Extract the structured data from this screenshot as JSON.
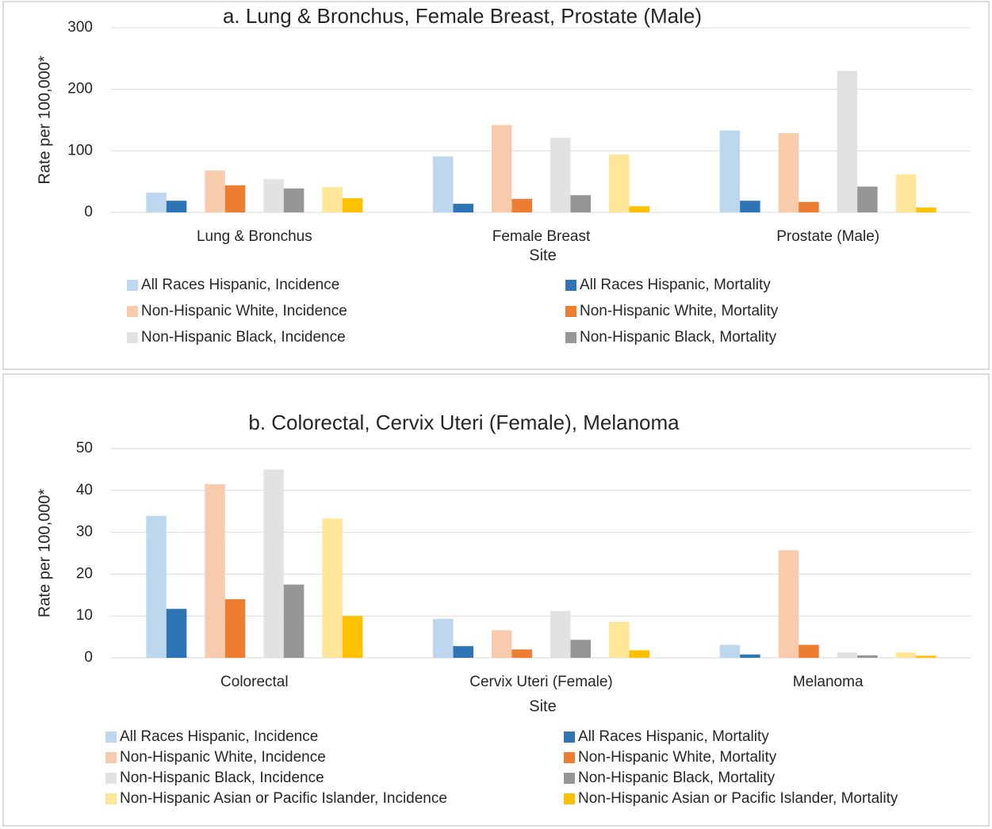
{
  "chart_data": [
    {
      "type": "bar",
      "title": "a. Lung & Bronchus, Female Breast, Prostate (Male)",
      "x_label": "Site",
      "y_label": "Rate per 100,000*",
      "categories": [
        "Lung & Bronchus",
        "Female Breast",
        "Prostate (Male)"
      ],
      "ylim": [
        0,
        300
      ],
      "yticks": [
        0,
        100,
        200,
        300
      ],
      "grid": true,
      "series": [
        {
          "name": "All Races Hispanic, Incidence",
          "color": "#bdd7ee",
          "values": [
            32,
            91,
            133
          ]
        },
        {
          "name": "All Races Hispanic, Mortality",
          "color": "#2e75b6",
          "values": [
            19,
            14,
            19
          ]
        },
        {
          "name": "Non-Hispanic White, Incidence",
          "color": "#f8cbad",
          "values": [
            68,
            142,
            129
          ]
        },
        {
          "name": "Non-Hispanic White, Mortality",
          "color": "#ed7d31",
          "values": [
            44,
            22,
            17
          ]
        },
        {
          "name": "Non-Hispanic Black, Incidence",
          "color": "#e2e2e2",
          "values": [
            54,
            121,
            230
          ]
        },
        {
          "name": "Non-Hispanic Black, Mortality",
          "color": "#969696",
          "values": [
            39,
            28,
            42
          ]
        },
        {
          "color": "#ffe699",
          "values": [
            41,
            94,
            62
          ]
        },
        {
          "color": "#ffc000",
          "values": [
            23,
            10,
            8
          ]
        }
      ]
    },
    {
      "type": "bar",
      "title": "b. Colorectal, Cervix Uteri (Female), Melanoma",
      "x_label": "Site",
      "y_label": "Rate per 100,000*",
      "categories": [
        "Colorectal",
        "Cervix Uteri (Female)",
        "Melanoma"
      ],
      "ylim": [
        0,
        50
      ],
      "yticks": [
        0,
        10,
        20,
        30,
        40,
        50
      ],
      "grid": true,
      "series": [
        {
          "name": "All Races Hispanic, Incidence",
          "color": "#bdd7ee",
          "values": [
            33.9,
            9.3,
            3.1
          ]
        },
        {
          "name": "All Races Hispanic, Mortality",
          "color": "#2e75b6",
          "values": [
            11.7,
            2.8,
            0.8
          ]
        },
        {
          "name": "Non-Hispanic White, Incidence",
          "color": "#f8cbad",
          "values": [
            41.5,
            6.6,
            25.7
          ]
        },
        {
          "name": "Non-Hispanic White, Mortality",
          "color": "#ed7d31",
          "values": [
            14,
            2,
            3.1
          ]
        },
        {
          "name": "Non-Hispanic Black, Incidence",
          "color": "#e2e2e2",
          "values": [
            45,
            11.2,
            1.3
          ]
        },
        {
          "name": "Non-Hispanic Black, Mortality",
          "color": "#969696",
          "values": [
            17.5,
            4.3,
            0.6
          ]
        },
        {
          "name": "Non-Hispanic Asian or Pacific Islander, Incidence",
          "color": "#ffe699",
          "values": [
            33.3,
            8.6,
            1.3
          ]
        },
        {
          "name": "Non-Hispanic Asian or Pacific Islander, Mortality",
          "color": "#ffc000",
          "values": [
            10,
            1.8,
            0.5
          ]
        }
      ]
    }
  ]
}
